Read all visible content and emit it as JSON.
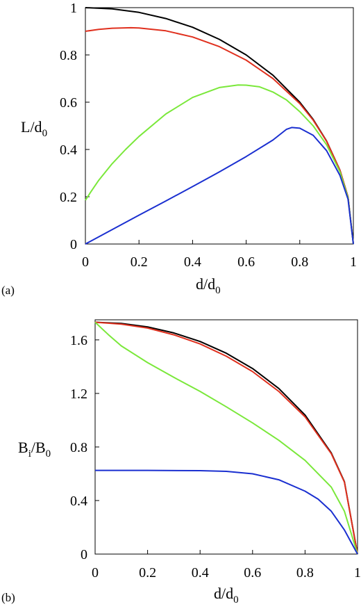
{
  "chart_data": [
    {
      "type": "line",
      "panel_label": "(a)",
      "xlabel": {
        "main": "d/d",
        "sub": "0"
      },
      "ylabel": {
        "main": "L/d",
        "sub": "0"
      },
      "xlim": [
        0,
        1
      ],
      "ylim": [
        0,
        1
      ],
      "xticks": [
        0,
        0.2,
        0.4,
        0.6,
        0.8,
        1
      ],
      "yticks": [
        0,
        0.2,
        0.4,
        0.6,
        0.8,
        1
      ],
      "xtick_labels": [
        "0",
        "0.2",
        "0.4",
        "0.6",
        "0.8",
        "1"
      ],
      "ytick_labels": [
        "0",
        "0.2",
        "0.4",
        "0.6",
        "0.8",
        "1"
      ],
      "grid": false,
      "series": [
        {
          "color": "#000000",
          "points": [
            [
              0,
              1.0
            ],
            [
              0.1,
              0.995
            ],
            [
              0.2,
              0.98
            ],
            [
              0.3,
              0.954
            ],
            [
              0.4,
              0.917
            ],
            [
              0.5,
              0.866
            ],
            [
              0.6,
              0.8
            ],
            [
              0.7,
              0.714
            ],
            [
              0.8,
              0.6
            ],
            [
              0.85,
              0.527
            ],
            [
              0.9,
              0.436
            ],
            [
              0.95,
              0.312
            ],
            [
              0.98,
              0.199
            ],
            [
              1.0,
              0.0
            ]
          ]
        },
        {
          "color": "#e0301e",
          "points": [
            [
              0,
              0.9
            ],
            [
              0.05,
              0.908
            ],
            [
              0.1,
              0.913
            ],
            [
              0.17,
              0.915
            ],
            [
              0.2,
              0.914
            ],
            [
              0.3,
              0.902
            ],
            [
              0.4,
              0.876
            ],
            [
              0.5,
              0.835
            ],
            [
              0.6,
              0.778
            ],
            [
              0.7,
              0.7
            ],
            [
              0.8,
              0.594
            ],
            [
              0.85,
              0.524
            ],
            [
              0.9,
              0.435
            ],
            [
              0.95,
              0.312
            ],
            [
              0.98,
              0.199
            ],
            [
              1.0,
              0.0
            ]
          ]
        },
        {
          "color": "#7ae83a",
          "points": [
            [
              0,
              0.185
            ],
            [
              0.02,
              0.22
            ],
            [
              0.05,
              0.27
            ],
            [
              0.1,
              0.34
            ],
            [
              0.15,
              0.4
            ],
            [
              0.2,
              0.455
            ],
            [
              0.3,
              0.55
            ],
            [
              0.4,
              0.62
            ],
            [
              0.5,
              0.662
            ],
            [
              0.57,
              0.673
            ],
            [
              0.6,
              0.672
            ],
            [
              0.65,
              0.665
            ],
            [
              0.7,
              0.643
            ],
            [
              0.75,
              0.61
            ],
            [
              0.8,
              0.56
            ],
            [
              0.85,
              0.5
            ],
            [
              0.9,
              0.42
            ],
            [
              0.95,
              0.305
            ],
            [
              0.98,
              0.196
            ],
            [
              1.0,
              0.0
            ]
          ]
        },
        {
          "color": "#1a2fd0",
          "points": [
            [
              0,
              0.0
            ],
            [
              0.1,
              0.061
            ],
            [
              0.2,
              0.122
            ],
            [
              0.3,
              0.182
            ],
            [
              0.4,
              0.243
            ],
            [
              0.5,
              0.305
            ],
            [
              0.6,
              0.37
            ],
            [
              0.7,
              0.44
            ],
            [
              0.75,
              0.485
            ],
            [
              0.77,
              0.493
            ],
            [
              0.8,
              0.49
            ],
            [
              0.85,
              0.46
            ],
            [
              0.9,
              0.395
            ],
            [
              0.95,
              0.29
            ],
            [
              0.98,
              0.19
            ],
            [
              1.0,
              0.0
            ]
          ]
        }
      ]
    },
    {
      "type": "line",
      "panel_label": "(b)",
      "xlabel": {
        "main": "d/d",
        "sub": "0"
      },
      "ylabel": {
        "main": "B",
        "sub1": "i",
        "mid": "/B",
        "sub2": "0"
      },
      "xlim": [
        0,
        1
      ],
      "ylim": [
        0,
        1.75
      ],
      "xticks": [
        0,
        0.2,
        0.4,
        0.6,
        0.8,
        1
      ],
      "yticks": [
        0,
        0.4,
        0.8,
        1.2,
        1.6
      ],
      "xtick_labels": [
        "0",
        "0.2",
        "0.4",
        "0.6",
        "0.8",
        "1"
      ],
      "ytick_labels": [
        "0",
        "0.4",
        "0.8",
        "1.2",
        "1.6"
      ],
      "grid": false,
      "series": [
        {
          "color": "#000000",
          "points": [
            [
              0,
              1.732
            ],
            [
              0.1,
              1.723
            ],
            [
              0.2,
              1.697
            ],
            [
              0.3,
              1.652
            ],
            [
              0.4,
              1.588
            ],
            [
              0.5,
              1.5
            ],
            [
              0.6,
              1.386
            ],
            [
              0.7,
              1.237
            ],
            [
              0.8,
              1.039
            ],
            [
              0.9,
              0.755
            ],
            [
              0.95,
              0.541
            ],
            [
              1.0,
              0.0
            ]
          ]
        },
        {
          "color": "#e0301e",
          "points": [
            [
              0,
              1.732
            ],
            [
              0.1,
              1.718
            ],
            [
              0.2,
              1.688
            ],
            [
              0.3,
              1.638
            ],
            [
              0.4,
              1.57
            ],
            [
              0.5,
              1.478
            ],
            [
              0.6,
              1.363
            ],
            [
              0.7,
              1.215
            ],
            [
              0.8,
              1.025
            ],
            [
              0.9,
              0.75
            ],
            [
              0.95,
              0.538
            ],
            [
              1.0,
              0.0
            ]
          ]
        },
        {
          "color": "#7ae83a",
          "points": [
            [
              0,
              1.732
            ],
            [
              0.05,
              1.64
            ],
            [
              0.1,
              1.555
            ],
            [
              0.2,
              1.43
            ],
            [
              0.3,
              1.32
            ],
            [
              0.4,
              1.215
            ],
            [
              0.5,
              1.1
            ],
            [
              0.6,
              0.98
            ],
            [
              0.7,
              0.85
            ],
            [
              0.8,
              0.7
            ],
            [
              0.9,
              0.5
            ],
            [
              0.95,
              0.32
            ],
            [
              1.0,
              0.0
            ]
          ]
        },
        {
          "color": "#1a2fd0",
          "points": [
            [
              0,
              0.625
            ],
            [
              0.2,
              0.625
            ],
            [
              0.4,
              0.623
            ],
            [
              0.5,
              0.618
            ],
            [
              0.6,
              0.6
            ],
            [
              0.7,
              0.555
            ],
            [
              0.8,
              0.47
            ],
            [
              0.85,
              0.41
            ],
            [
              0.9,
              0.32
            ],
            [
              0.95,
              0.18
            ],
            [
              1.0,
              0.0
            ]
          ]
        }
      ]
    }
  ]
}
